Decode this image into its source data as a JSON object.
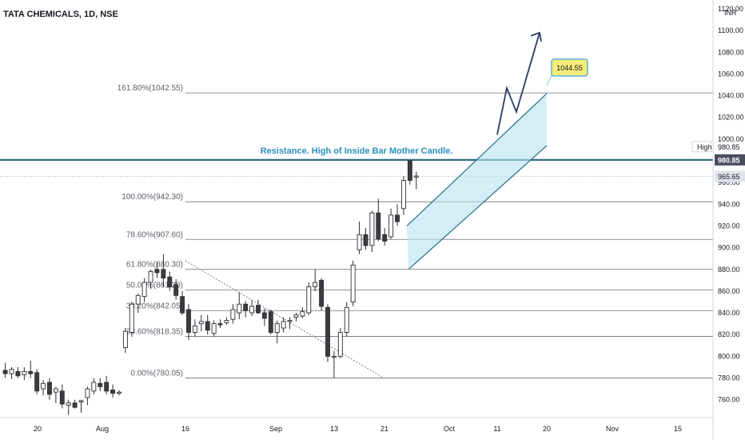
{
  "chart_data": {
    "type": "candlestick",
    "title": "TATA CHEMICALS, 1D, NSE",
    "currency": "INR",
    "ylim": [
      750,
      1120
    ],
    "y_ticks": [
      760,
      780,
      800,
      820,
      840,
      860,
      880,
      900,
      920,
      940,
      960,
      980,
      1000,
      1020,
      1040,
      1060,
      1080,
      1100,
      1120
    ],
    "y_tick_labels": [
      "760.00",
      "780.00",
      "800.00",
      "820.00",
      "840.00",
      "860.00",
      "880.00",
      "900.00",
      "920.00",
      "940.00",
      "960.00",
      "980.00",
      "1000.00",
      "1020.00",
      "1040.00",
      "1060.00",
      "1080.00",
      "1100.00",
      "1120.00"
    ],
    "x_tick_labels": [
      "20",
      "Aug",
      "16",
      "Sep",
      "13",
      "21",
      "Oct",
      "11",
      "20",
      "Nov",
      "15"
    ],
    "price_labels": {
      "high_tag": "High",
      "high_value": "980.85",
      "high_box_value": "980.85",
      "last_value": "965.65",
      "high_price": 980.85,
      "last_price": 965.65
    },
    "fib_levels": [
      {
        "label": "161.80%(1042.55)",
        "price": 1042.55
      },
      {
        "label": "100.00%(942.30)",
        "price": 942.3
      },
      {
        "label": "78.60%(907.60)",
        "price": 907.6
      },
      {
        "label": "61.80%(880.30)",
        "price": 880.3
      },
      {
        "label": "50.00%(861.20)",
        "price": 861.2
      },
      {
        "label": "38.20%(842.05)",
        "price": 842.05
      },
      {
        "label": "23.60%(818.35)",
        "price": 818.35
      },
      {
        "label": "0.00%(780.05)",
        "price": 780.05
      }
    ],
    "resistance": {
      "text": "Resistance. High of Inside Bar Mother Candle.",
      "price": 980.85
    },
    "target_label": "1044.55",
    "candles": [
      {
        "o": 787,
        "h": 794,
        "l": 780,
        "c": 784
      },
      {
        "o": 784,
        "h": 790,
        "l": 779,
        "c": 788
      },
      {
        "o": 786,
        "h": 790,
        "l": 780,
        "c": 782
      },
      {
        "o": 783,
        "h": 790,
        "l": 778,
        "c": 786
      },
      {
        "o": 786,
        "h": 796,
        "l": 780,
        "c": 784
      },
      {
        "o": 785,
        "h": 788,
        "l": 765,
        "c": 768
      },
      {
        "o": 770,
        "h": 778,
        "l": 764,
        "c": 775
      },
      {
        "o": 776,
        "h": 780,
        "l": 760,
        "c": 765
      },
      {
        "o": 767,
        "h": 772,
        "l": 757,
        "c": 770
      },
      {
        "o": 768,
        "h": 774,
        "l": 752,
        "c": 756
      },
      {
        "o": 755,
        "h": 760,
        "l": 746,
        "c": 757
      },
      {
        "o": 757,
        "h": 760,
        "l": 752,
        "c": 753
      },
      {
        "o": 758,
        "h": 760,
        "l": 748,
        "c": 759
      },
      {
        "o": 762,
        "h": 772,
        "l": 755,
        "c": 770
      },
      {
        "o": 768,
        "h": 780,
        "l": 765,
        "c": 776
      },
      {
        "o": 775,
        "h": 780,
        "l": 768,
        "c": 772
      },
      {
        "o": 776,
        "h": 782,
        "l": 765,
        "c": 768
      },
      {
        "o": 769,
        "h": 774,
        "l": 762,
        "c": 766
      },
      {
        "o": 766,
        "h": 769,
        "l": 764,
        "c": 767
      },
      {
        "o": 808,
        "h": 826,
        "l": 803,
        "c": 823
      },
      {
        "o": 822,
        "h": 850,
        "l": 818,
        "c": 848
      },
      {
        "o": 848,
        "h": 858,
        "l": 840,
        "c": 856
      },
      {
        "o": 855,
        "h": 872,
        "l": 850,
        "c": 868
      },
      {
        "o": 868,
        "h": 880,
        "l": 862,
        "c": 878
      },
      {
        "o": 880,
        "h": 887,
        "l": 872,
        "c": 877
      },
      {
        "o": 880,
        "h": 894,
        "l": 864,
        "c": 872
      },
      {
        "o": 873,
        "h": 878,
        "l": 860,
        "c": 864
      },
      {
        "o": 866,
        "h": 871,
        "l": 852,
        "c": 856
      },
      {
        "o": 855,
        "h": 860,
        "l": 838,
        "c": 840
      },
      {
        "o": 843,
        "h": 848,
        "l": 815,
        "c": 822
      },
      {
        "o": 822,
        "h": 834,
        "l": 818,
        "c": 828
      },
      {
        "o": 830,
        "h": 838,
        "l": 823,
        "c": 832
      },
      {
        "o": 832,
        "h": 838,
        "l": 820,
        "c": 824
      },
      {
        "o": 821,
        "h": 833,
        "l": 818,
        "c": 830
      },
      {
        "o": 830,
        "h": 834,
        "l": 826,
        "c": 829
      },
      {
        "o": 831,
        "h": 836,
        "l": 829,
        "c": 833
      },
      {
        "o": 834,
        "h": 848,
        "l": 830,
        "c": 843
      },
      {
        "o": 840,
        "h": 859,
        "l": 834,
        "c": 848
      },
      {
        "o": 848,
        "h": 851,
        "l": 836,
        "c": 842
      },
      {
        "o": 840,
        "h": 852,
        "l": 837,
        "c": 846
      },
      {
        "o": 847,
        "h": 852,
        "l": 839,
        "c": 840
      },
      {
        "o": 840,
        "h": 844,
        "l": 828,
        "c": 835
      },
      {
        "o": 841,
        "h": 843,
        "l": 820,
        "c": 822
      },
      {
        "o": 822,
        "h": 833,
        "l": 812,
        "c": 830
      },
      {
        "o": 826,
        "h": 836,
        "l": 822,
        "c": 832
      },
      {
        "o": 832,
        "h": 836,
        "l": 825,
        "c": 833
      },
      {
        "o": 836,
        "h": 840,
        "l": 832,
        "c": 838
      },
      {
        "o": 837,
        "h": 845,
        "l": 835,
        "c": 841
      },
      {
        "o": 840,
        "h": 868,
        "l": 838,
        "c": 864
      },
      {
        "o": 864,
        "h": 880,
        "l": 860,
        "c": 868
      },
      {
        "o": 870,
        "h": 872,
        "l": 842,
        "c": 846
      },
      {
        "o": 845,
        "h": 848,
        "l": 795,
        "c": 800
      },
      {
        "o": 799,
        "h": 805,
        "l": 780,
        "c": 800
      },
      {
        "o": 800,
        "h": 826,
        "l": 798,
        "c": 822
      },
      {
        "o": 822,
        "h": 850,
        "l": 818,
        "c": 845
      },
      {
        "o": 850,
        "h": 888,
        "l": 846,
        "c": 884
      },
      {
        "o": 898,
        "h": 924,
        "l": 894,
        "c": 912
      },
      {
        "o": 912,
        "h": 918,
        "l": 898,
        "c": 902
      },
      {
        "o": 902,
        "h": 934,
        "l": 896,
        "c": 932
      },
      {
        "o": 932,
        "h": 945,
        "l": 906,
        "c": 908
      },
      {
        "o": 912,
        "h": 918,
        "l": 902,
        "c": 906
      },
      {
        "o": 910,
        "h": 936,
        "l": 908,
        "c": 930
      },
      {
        "o": 930,
        "h": 940,
        "l": 920,
        "c": 924
      },
      {
        "o": 936,
        "h": 966,
        "l": 930,
        "c": 962
      },
      {
        "o": 980,
        "h": 981,
        "l": 958,
        "c": 962
      },
      {
        "o": 965,
        "h": 970,
        "l": 954,
        "c": 966
      }
    ]
  }
}
